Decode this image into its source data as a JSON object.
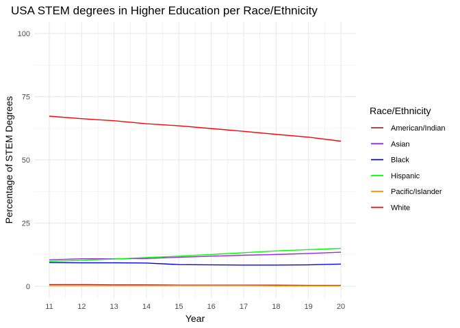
{
  "chart_data": {
    "type": "line",
    "title": "USA STEM degrees in Higher Education per Race/Ethnicity",
    "xlabel": "Year",
    "ylabel": "Percentage of STEM Degrees",
    "x": [
      11,
      12,
      13,
      14,
      15,
      16,
      17,
      18,
      19,
      20
    ],
    "xlim": [
      11,
      20
    ],
    "ylim": [
      0,
      100
    ],
    "yticks": [
      0,
      25,
      50,
      75,
      100
    ],
    "grid": true,
    "legend_title": "Race/Ethnicity",
    "legend_position": "right",
    "series": [
      {
        "name": "American/Indian",
        "color": "#a52a2a",
        "values": [
          0.7,
          0.7,
          0.6,
          0.6,
          0.5,
          0.5,
          0.5,
          0.5,
          0.4,
          0.4
        ]
      },
      {
        "name": "Asian",
        "color": "#a020f0",
        "values": [
          10.5,
          10.9,
          10.9,
          11.0,
          11.5,
          11.9,
          12.3,
          12.6,
          13.0,
          13.5
        ]
      },
      {
        "name": "Black",
        "color": "#0000ff",
        "values": [
          9.4,
          9.3,
          9.3,
          9.2,
          8.6,
          8.5,
          8.4,
          8.4,
          8.5,
          8.8
        ]
      },
      {
        "name": "Hispanic",
        "color": "#00ff00",
        "values": [
          9.9,
          10.3,
          10.8,
          11.4,
          11.9,
          12.6,
          13.3,
          14.0,
          14.5,
          15.0
        ]
      },
      {
        "name": "Pacific/Islander",
        "color": "#ff8c00",
        "values": [
          0.3,
          0.3,
          0.3,
          0.3,
          0.3,
          0.3,
          0.3,
          0.2,
          0.2,
          0.2
        ]
      },
      {
        "name": "White",
        "color": "#ff0000",
        "values": [
          67.3,
          66.3,
          65.5,
          64.3,
          63.5,
          62.4,
          61.3,
          60.1,
          59.0,
          57.4
        ]
      }
    ]
  }
}
